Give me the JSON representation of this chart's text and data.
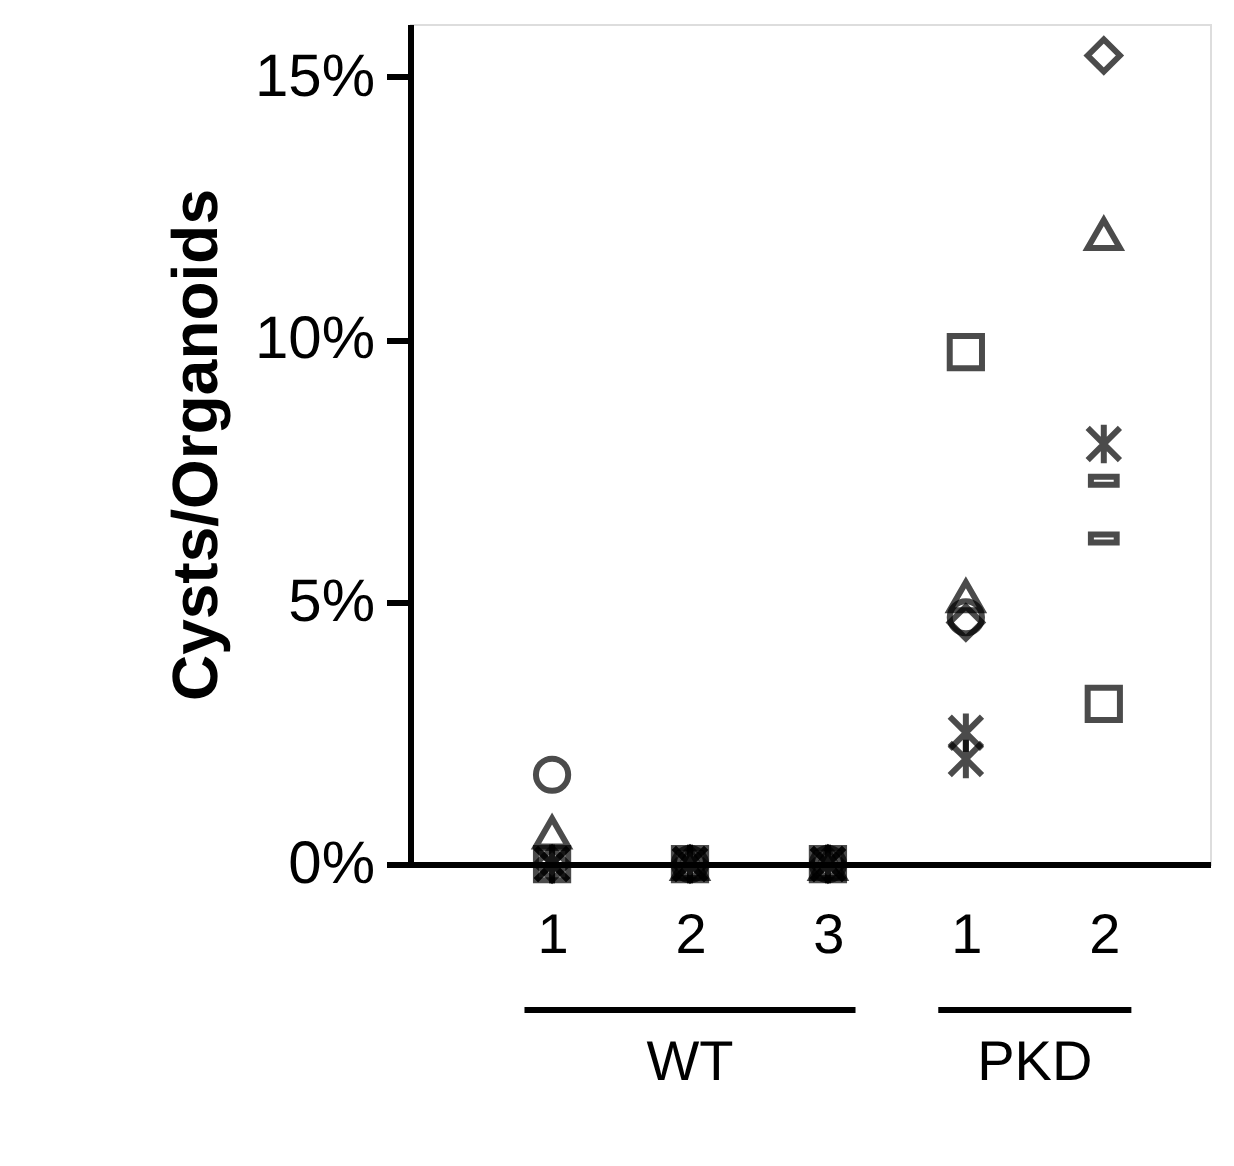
{
  "chart_data": {
    "type": "scatter",
    "ylabel": "Cysts/Organoids",
    "categories": [
      "1",
      "2",
      "3",
      "1",
      "2"
    ],
    "ylim": [
      0,
      16
    ],
    "yticks": [
      {
        "value": 0,
        "label": "0%"
      },
      {
        "value": 5,
        "label": "5%"
      },
      {
        "value": 10,
        "label": "10%"
      },
      {
        "value": 15,
        "label": "15%"
      }
    ],
    "grid": false,
    "annotations": [
      "WT",
      "PKD"
    ],
    "series": [
      {
        "marker": "circle",
        "color": "#000000",
        "values": [
          1.7,
          0,
          0,
          4.7,
          null
        ]
      },
      {
        "marker": "triangle",
        "color": "#000000",
        "values": [
          0.6,
          0,
          0,
          5.1,
          12.0
        ]
      },
      {
        "marker": "square",
        "color": "#000000",
        "values": [
          0,
          0,
          0,
          9.75,
          3.05
        ]
      },
      {
        "marker": "diamond",
        "color": "#000000",
        "values": [
          0,
          0,
          0,
          4.6,
          15.4
        ]
      },
      {
        "marker": "cross",
        "color": "#000000",
        "values": [
          0,
          0,
          0,
          2.5,
          null
        ]
      },
      {
        "marker": "cross",
        "color": "#000000",
        "values": [
          null,
          null,
          null,
          2.0,
          null
        ]
      },
      {
        "marker": "cross",
        "color": "#000000",
        "values": [
          0,
          0,
          0,
          null,
          8.0
        ]
      },
      {
        "color": "#000000",
        "values": [
          null,
          null,
          null,
          null,
          7.3
        ]
      },
      {
        "color": "#000000",
        "values": [
          null,
          null,
          null,
          null,
          6.2
        ]
      }
    ]
  }
}
